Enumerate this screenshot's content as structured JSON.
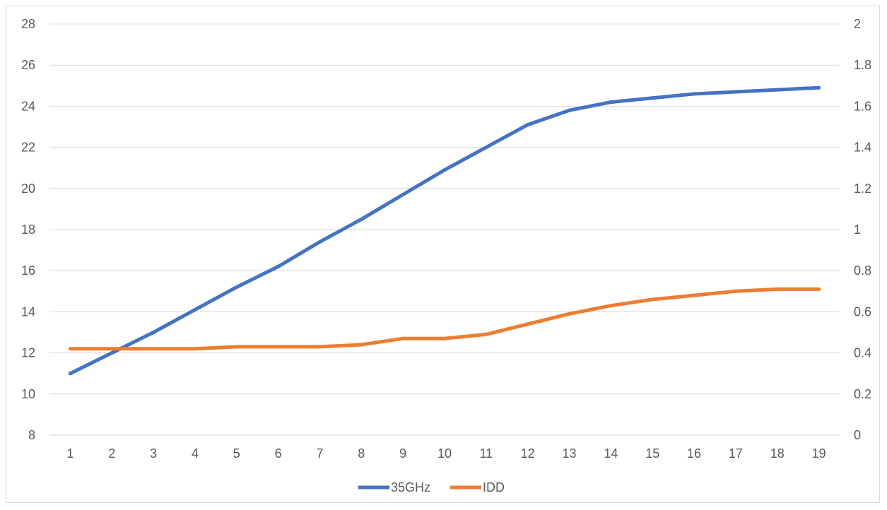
{
  "chart_data": {
    "type": "line",
    "title": "",
    "xlabel": "",
    "ylabel": "",
    "y2label": "",
    "categories": [
      "1",
      "2",
      "3",
      "4",
      "5",
      "6",
      "7",
      "8",
      "9",
      "10",
      "11",
      "12",
      "13",
      "14",
      "15",
      "16",
      "17",
      "18",
      "19"
    ],
    "ylim": [
      8,
      28
    ],
    "yticks": [
      "8",
      "10",
      "12",
      "14",
      "16",
      "18",
      "20",
      "22",
      "24",
      "26",
      "28"
    ],
    "y2lim": [
      0,
      2
    ],
    "y2ticks": [
      "0",
      "0.2",
      "0.4",
      "0.6",
      "0.8",
      "1",
      "1.2",
      "1.4",
      "1.6",
      "1.8",
      "2"
    ],
    "grid": true,
    "legend_position": "bottom",
    "series": [
      {
        "name": "35GHz",
        "axis": "left",
        "color": "#4472c4",
        "values": [
          11.0,
          12.0,
          13.0,
          14.1,
          15.2,
          16.2,
          17.4,
          18.5,
          19.7,
          20.9,
          22.0,
          23.1,
          23.8,
          24.2,
          24.4,
          24.6,
          24.7,
          24.8,
          24.9
        ]
      },
      {
        "name": "IDD",
        "axis": "right",
        "color": "#ed7d31",
        "values": [
          0.42,
          0.42,
          0.42,
          0.42,
          0.43,
          0.43,
          0.43,
          0.44,
          0.47,
          0.47,
          0.49,
          0.54,
          0.59,
          0.63,
          0.66,
          0.68,
          0.7,
          0.71,
          0.71
        ]
      }
    ]
  }
}
